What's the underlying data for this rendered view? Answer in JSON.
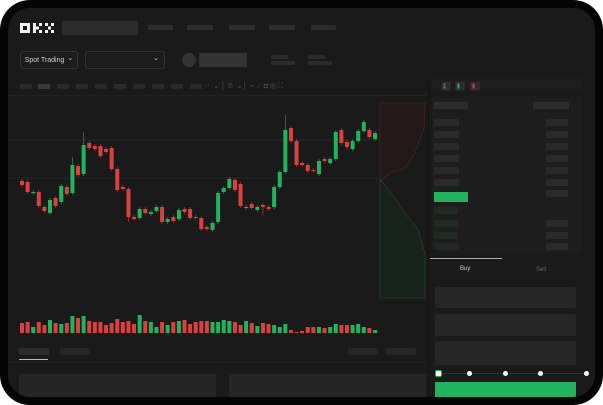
{
  "header": {
    "logo": "OKX",
    "nav_count": 5
  },
  "toolbar": {
    "market_button": "Spot Trading",
    "pair_select": "",
    "chevron": "⌄"
  },
  "chart_icons": [
    "indicator-icon",
    "drawing-icon",
    "wave-icon",
    "ruler-icon",
    "camera-icon",
    "settings-icon",
    "fullscreen-icon"
  ],
  "orderbook": {
    "view_icons": [
      "both-sides-icon",
      "bids-only-icon",
      "asks-only-icon"
    ]
  },
  "trade": {
    "tabs": [
      {
        "label": "Buy",
        "active": true
      },
      {
        "label": "Sell",
        "active": false
      }
    ],
    "slider_percent": 0,
    "slider_stops": [
      0,
      25,
      50,
      75,
      100
    ]
  },
  "colors": {
    "up": "#22b35e",
    "down": "#d9403f",
    "background": "#1a1a1a",
    "accent": "#22b35e"
  },
  "chart_data": {
    "type": "candlestick",
    "candles": [
      {
        "o": 69,
        "c": 65
      },
      {
        "o": 68,
        "c": 58
      },
      {
        "o": 57,
        "c": 58
      },
      {
        "o": 58,
        "c": 44
      },
      {
        "o": 43,
        "c": 39
      },
      {
        "o": 37,
        "c": 50
      },
      {
        "o": 52,
        "c": 44
      },
      {
        "o": 48,
        "c": 64
      },
      {
        "o": 63,
        "c": 56
      },
      {
        "o": 57,
        "c": 85,
        "h": 93
      },
      {
        "o": 84,
        "c": 75
      },
      {
        "o": 76,
        "c": 105,
        "h": 118
      },
      {
        "o": 107,
        "c": 102
      },
      {
        "o": 104,
        "c": 101
      },
      {
        "o": 104,
        "c": 94
      },
      {
        "o": 101,
        "c": 98
      },
      {
        "o": 102,
        "c": 81
      },
      {
        "o": 81,
        "c": 60
      },
      {
        "o": 63,
        "c": 61
      },
      {
        "o": 61,
        "c": 33,
        "l": 28
      },
      {
        "o": 33,
        "c": 31
      },
      {
        "o": 32,
        "c": 41
      },
      {
        "o": 41,
        "c": 37
      },
      {
        "o": 36,
        "c": 38
      },
      {
        "o": 39,
        "c": 43
      },
      {
        "o": 43,
        "c": 28
      },
      {
        "o": 28,
        "c": 31
      },
      {
        "o": 33,
        "c": 29
      },
      {
        "o": 31,
        "c": 40
      },
      {
        "o": 41,
        "c": 38
      },
      {
        "o": 41,
        "c": 32
      },
      {
        "o": 33,
        "c": 32
      },
      {
        "o": 32,
        "c": 21
      },
      {
        "o": 23,
        "c": 21
      },
      {
        "o": 20,
        "c": 27
      },
      {
        "o": 28,
        "c": 57
      },
      {
        "o": 58,
        "c": 62
      },
      {
        "o": 62,
        "c": 71
      },
      {
        "o": 70,
        "c": 60
      },
      {
        "o": 66,
        "c": 44
      },
      {
        "o": 42,
        "c": 43
      },
      {
        "o": 46,
        "c": 42
      },
      {
        "o": 40,
        "c": 43
      },
      {
        "o": 45,
        "c": 43,
        "l": 35
      },
      {
        "o": 43,
        "c": 41
      },
      {
        "o": 43,
        "c": 63
      },
      {
        "o": 63,
        "c": 78
      },
      {
        "o": 78,
        "c": 120,
        "h": 135
      },
      {
        "o": 122,
        "c": 109
      },
      {
        "o": 109,
        "c": 85
      },
      {
        "o": 87,
        "c": 85
      },
      {
        "o": 85,
        "c": 79
      },
      {
        "o": 80,
        "c": 79
      },
      {
        "o": 76,
        "c": 89
      },
      {
        "o": 91,
        "c": 89
      },
      {
        "o": 87,
        "c": 91
      },
      {
        "o": 91,
        "c": 118
      },
      {
        "o": 120,
        "c": 107
      },
      {
        "o": 108,
        "c": 103
      },
      {
        "o": 101,
        "c": 109
      },
      {
        "o": 109,
        "c": 119
      },
      {
        "o": 119,
        "c": 128
      },
      {
        "o": 120,
        "c": 113
      },
      {
        "o": 111,
        "c": 117
      }
    ],
    "volume": [
      10,
      11,
      6,
      11,
      8,
      13,
      10,
      9,
      10,
      17,
      15,
      17,
      12,
      11,
      11,
      8,
      10,
      14,
      11,
      12,
      9,
      18,
      12,
      11,
      6,
      11,
      8,
      11,
      12,
      13,
      9,
      11,
      12,
      12,
      11,
      11,
      13,
      12,
      11,
      8,
      12,
      10,
      7,
      10,
      9,
      8,
      6,
      9,
      3,
      1,
      2,
      6,
      6,
      6,
      5,
      6,
      9,
      8,
      8,
      8,
      9,
      6,
      5,
      3
    ],
    "grid": true
  }
}
